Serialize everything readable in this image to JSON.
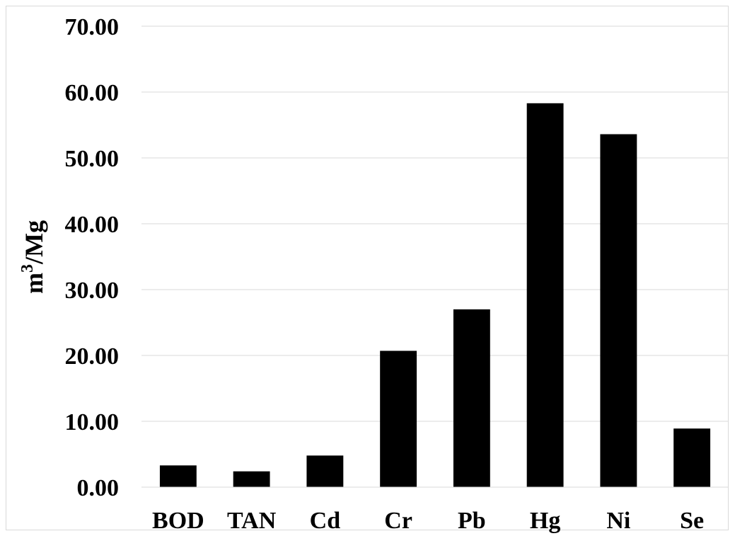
{
  "chart_data": {
    "type": "bar",
    "title": "",
    "xlabel": "",
    "ylabel": "m³/Mg",
    "ylabel_parts": {
      "base": "m",
      "sup": "3",
      "rest": "/Mg"
    },
    "categories": [
      "BOD",
      "TAN",
      "Cd",
      "Cr",
      "Pb",
      "Hg",
      "Ni",
      "Se"
    ],
    "values": [
      3.3,
      2.4,
      4.8,
      20.7,
      27.0,
      58.3,
      53.6,
      8.9
    ],
    "ylim": [
      0,
      70
    ],
    "yticks": [
      0,
      10,
      20,
      30,
      40,
      50,
      60,
      70
    ],
    "ytick_labels": [
      "0.00",
      "10.00",
      "20.00",
      "30.00",
      "40.00",
      "50.00",
      "60.00",
      "70.00"
    ],
    "grid": true,
    "legend": "none",
    "bar_color": "#000000",
    "grid_color": "#d9d9d9"
  }
}
